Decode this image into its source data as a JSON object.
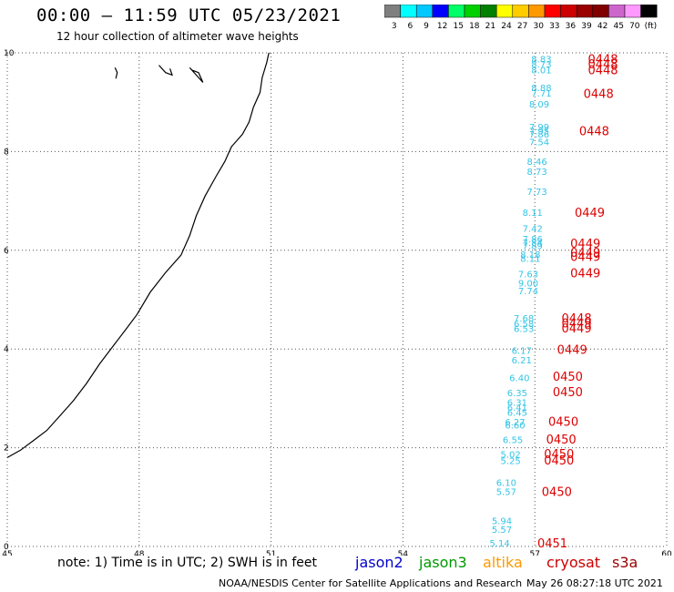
{
  "title": "00:00 — 11:59 UTC 05/23/2021",
  "subtitle": "12 hour collection of altimeter wave heights",
  "colorbar": {
    "ticks": [
      "3",
      "6",
      "9",
      "12",
      "15",
      "18",
      "21",
      "24",
      "27",
      "30",
      "33",
      "36",
      "39",
      "42",
      "45",
      "70",
      "(ft)"
    ],
    "colors": [
      "#7f7f7f",
      "#00ffff",
      "#00c8ff",
      "#0000ff",
      "#00ff66",
      "#00d000",
      "#008000",
      "#ffff00",
      "#ffcc00",
      "#ff9900",
      "#ff0000",
      "#cc0000",
      "#990000",
      "#800000",
      "#cc66cc",
      "#ff99ff",
      "#000000"
    ]
  },
  "axes": {
    "x_ticks": [
      "45",
      "48",
      "51",
      "54",
      "57",
      "60"
    ],
    "y_ticks": [
      "0",
      "2",
      "4",
      "6",
      "8",
      "10"
    ]
  },
  "note": {
    "text": "note:  1) Time is in UTC;  2) SWH is in feet",
    "satellites": [
      {
        "name": "jason2",
        "color": "#0000cc"
      },
      {
        "name": "jason3",
        "color": "#009900"
      },
      {
        "name": "altika",
        "color": "#ff9900"
      },
      {
        "name": "cryosat",
        "color": "#cc0000"
      },
      {
        "name": "s3a",
        "color": "#990000"
      }
    ]
  },
  "footer": {
    "credit": "NOAA/NESDIS Center for Satellite Applications and Research",
    "timestamp": "May 26 08:27:18 UTC 2021"
  },
  "chart_data": {
    "type": "scatter",
    "xlim": [
      45,
      60
    ],
    "ylim": [
      0,
      10
    ],
    "grid": true,
    "wave_heights": [
      {
        "lon": 57.15,
        "lat": 9.88,
        "swh": "8.83"
      },
      {
        "lon": 57.15,
        "lat": 9.78,
        "swh": "8.73"
      },
      {
        "lon": 57.15,
        "lat": 9.66,
        "swh": "8.01"
      },
      {
        "lon": 57.15,
        "lat": 9.3,
        "swh": "8.88"
      },
      {
        "lon": 57.15,
        "lat": 9.19,
        "swh": "7.71"
      },
      {
        "lon": 57.1,
        "lat": 8.97,
        "swh": "8.09"
      },
      {
        "lon": 57.1,
        "lat": 8.51,
        "swh": "7.99"
      },
      {
        "lon": 57.1,
        "lat": 8.42,
        "swh": "7.95"
      },
      {
        "lon": 57.1,
        "lat": 8.36,
        "swh": "7.86"
      },
      {
        "lon": 57.1,
        "lat": 8.2,
        "swh": "7.54"
      },
      {
        "lon": 57.05,
        "lat": 7.8,
        "swh": "8.46"
      },
      {
        "lon": 57.05,
        "lat": 7.6,
        "swh": "8.73"
      },
      {
        "lon": 57.05,
        "lat": 7.2,
        "swh": "7.73"
      },
      {
        "lon": 56.95,
        "lat": 6.77,
        "swh": "8.11"
      },
      {
        "lon": 56.95,
        "lat": 6.45,
        "swh": "7.42"
      },
      {
        "lon": 56.95,
        "lat": 6.24,
        "swh": "7.86"
      },
      {
        "lon": 56.95,
        "lat": 6.16,
        "swh": "7.84"
      },
      {
        "lon": 56.95,
        "lat": 6.1,
        "swh": "7.89"
      },
      {
        "lon": 56.9,
        "lat": 5.92,
        "swh": "8.18"
      },
      {
        "lon": 56.9,
        "lat": 5.84,
        "swh": "8.11"
      },
      {
        "lon": 56.85,
        "lat": 5.53,
        "swh": "7.63"
      },
      {
        "lon": 56.85,
        "lat": 5.34,
        "swh": "9.00"
      },
      {
        "lon": 56.85,
        "lat": 5.18,
        "swh": "7.74"
      },
      {
        "lon": 56.75,
        "lat": 4.63,
        "swh": "7.68"
      },
      {
        "lon": 56.75,
        "lat": 4.52,
        "swh": "6.58"
      },
      {
        "lon": 56.75,
        "lat": 4.42,
        "swh": "6.53"
      },
      {
        "lon": 56.7,
        "lat": 3.98,
        "swh": "6.17"
      },
      {
        "lon": 56.7,
        "lat": 3.78,
        "swh": "6.21"
      },
      {
        "lon": 56.65,
        "lat": 3.42,
        "swh": "6.40"
      },
      {
        "lon": 56.6,
        "lat": 3.12,
        "swh": "6.35"
      },
      {
        "lon": 56.6,
        "lat": 2.92,
        "swh": "6.31"
      },
      {
        "lon": 56.6,
        "lat": 2.82,
        "swh": "6.41"
      },
      {
        "lon": 56.6,
        "lat": 2.72,
        "swh": "6.45"
      },
      {
        "lon": 56.55,
        "lat": 2.53,
        "swh": "6.27"
      },
      {
        "lon": 56.55,
        "lat": 2.46,
        "swh": "6.60"
      },
      {
        "lon": 56.5,
        "lat": 2.17,
        "swh": "6.55"
      },
      {
        "lon": 56.45,
        "lat": 1.87,
        "swh": "5.02"
      },
      {
        "lon": 56.45,
        "lat": 1.74,
        "swh": "5.25"
      },
      {
        "lon": 56.35,
        "lat": 1.3,
        "swh": "6.10"
      },
      {
        "lon": 56.35,
        "lat": 1.12,
        "swh": "5.57"
      },
      {
        "lon": 56.25,
        "lat": 0.53,
        "swh": "5.94"
      },
      {
        "lon": 56.25,
        "lat": 0.35,
        "swh": "5.57"
      },
      {
        "lon": 56.2,
        "lat": 0.07,
        "swh": "5.14"
      }
    ],
    "time_labels": [
      {
        "lon": 58.55,
        "lat": 9.88,
        "text": "0448"
      },
      {
        "lon": 58.55,
        "lat": 9.78,
        "text": "0448"
      },
      {
        "lon": 58.55,
        "lat": 9.66,
        "text": "0448"
      },
      {
        "lon": 58.45,
        "lat": 9.18,
        "text": "0448"
      },
      {
        "lon": 58.35,
        "lat": 8.42,
        "text": "0448"
      },
      {
        "lon": 58.25,
        "lat": 6.77,
        "text": "0449"
      },
      {
        "lon": 58.15,
        "lat": 6.14,
        "text": "0449"
      },
      {
        "lon": 58.15,
        "lat": 5.96,
        "text": "0449"
      },
      {
        "lon": 58.15,
        "lat": 5.88,
        "text": "0449"
      },
      {
        "lon": 58.15,
        "lat": 5.54,
        "text": "0449"
      },
      {
        "lon": 57.95,
        "lat": 4.63,
        "text": "0448"
      },
      {
        "lon": 57.95,
        "lat": 4.53,
        "text": "0449"
      },
      {
        "lon": 57.95,
        "lat": 4.43,
        "text": "0449"
      },
      {
        "lon": 57.85,
        "lat": 3.99,
        "text": "0449"
      },
      {
        "lon": 57.75,
        "lat": 3.45,
        "text": "0450"
      },
      {
        "lon": 57.75,
        "lat": 3.14,
        "text": "0450"
      },
      {
        "lon": 57.65,
        "lat": 2.54,
        "text": "0450"
      },
      {
        "lon": 57.6,
        "lat": 2.18,
        "text": "0450"
      },
      {
        "lon": 57.55,
        "lat": 1.88,
        "text": "0450"
      },
      {
        "lon": 57.55,
        "lat": 1.75,
        "text": "0450"
      },
      {
        "lon": 57.5,
        "lat": 1.12,
        "text": "0450"
      },
      {
        "lon": 57.4,
        "lat": 0.07,
        "text": "0451"
      }
    ],
    "coastline": [
      [
        45.0,
        1.8
      ],
      [
        45.3,
        1.95
      ],
      [
        45.6,
        2.15
      ],
      [
        45.9,
        2.35
      ],
      [
        46.15,
        2.6
      ],
      [
        46.5,
        2.95
      ],
      [
        46.8,
        3.3
      ],
      [
        47.1,
        3.7
      ],
      [
        47.4,
        4.05
      ],
      [
        47.7,
        4.4
      ],
      [
        47.95,
        4.7
      ],
      [
        48.25,
        5.15
      ],
      [
        48.6,
        5.55
      ],
      [
        48.95,
        5.9
      ],
      [
        49.15,
        6.3
      ],
      [
        49.3,
        6.7
      ],
      [
        49.5,
        7.1
      ],
      [
        49.75,
        7.5
      ],
      [
        49.95,
        7.8
      ],
      [
        50.1,
        8.1
      ],
      [
        50.35,
        8.35
      ],
      [
        50.5,
        8.6
      ],
      [
        50.6,
        8.9
      ],
      [
        50.75,
        9.2
      ],
      [
        50.8,
        9.5
      ],
      [
        50.9,
        9.8
      ],
      [
        50.95,
        10.0
      ]
    ],
    "islands": [
      [
        [
          47.45,
          9.7
        ],
        [
          47.5,
          9.6
        ],
        [
          47.47,
          9.48
        ]
      ],
      [
        [
          48.45,
          9.75
        ],
        [
          48.6,
          9.6
        ],
        [
          48.75,
          9.55
        ],
        [
          48.7,
          9.68
        ]
      ],
      [
        [
          49.15,
          9.7
        ],
        [
          49.3,
          9.55
        ],
        [
          49.45,
          9.4
        ],
        [
          49.35,
          9.6
        ],
        [
          49.2,
          9.65
        ]
      ]
    ]
  }
}
